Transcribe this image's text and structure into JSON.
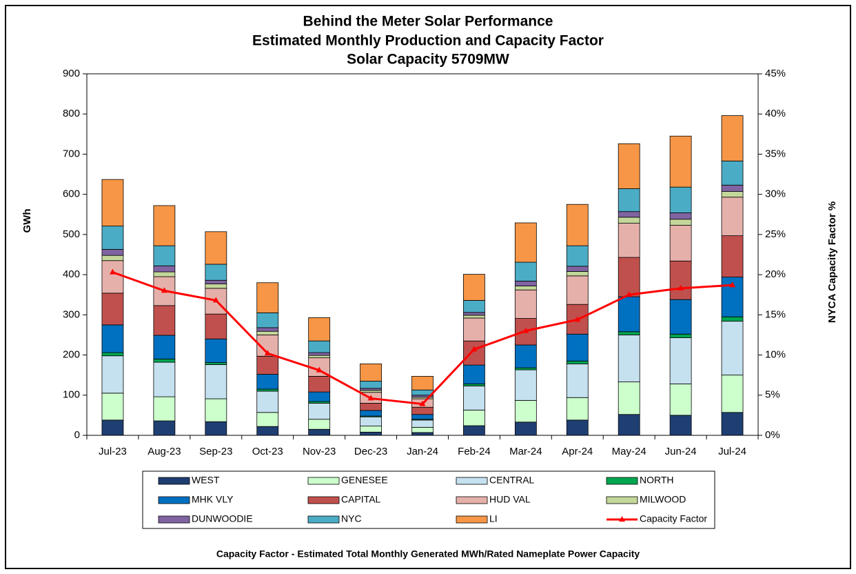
{
  "chart_data": {
    "type": "bar",
    "stacked": true,
    "title": [
      "Behind the Meter Solar Performance",
      "Estimated Monthly Production and Capacity Factor",
      "Solar Capacity 5709MW"
    ],
    "y_label": "GWh",
    "y2_label": "NYCA Capacity Factor %",
    "footnote": "Capacity Factor  - Estimated Total  Monthly Generated MWh/Rated Nameplate Power Capacity",
    "categories": [
      "Jul-23",
      "Aug-23",
      "Sep-23",
      "Oct-23",
      "Nov-23",
      "Dec-23",
      "Jan-24",
      "Feb-24",
      "Mar-24",
      "Apr-24",
      "May-24",
      "Jun-24",
      "Jul-24"
    ],
    "ylim": [
      0,
      900
    ],
    "yticks": [
      0,
      100,
      200,
      300,
      400,
      500,
      600,
      700,
      800,
      900
    ],
    "y2lim": [
      0,
      45
    ],
    "y2ticks": [
      {
        "value": 0,
        "label": "0%"
      },
      {
        "value": 5,
        "label": "5%"
      },
      {
        "value": 10,
        "label": "10%"
      },
      {
        "value": 15,
        "label": "15%"
      },
      {
        "value": 20,
        "label": "20%"
      },
      {
        "value": 25,
        "label": "25%"
      },
      {
        "value": 30,
        "label": "30%"
      },
      {
        "value": 35,
        "label": "35%"
      },
      {
        "value": 40,
        "label": "40%"
      },
      {
        "value": 45,
        "label": "45%"
      }
    ],
    "series": [
      {
        "name": "WEST",
        "color": "#1f3f73",
        "values": [
          38,
          36,
          34,
          22,
          15,
          8,
          7,
          24,
          33,
          38,
          52,
          50,
          57
        ]
      },
      {
        "name": "GENESEE",
        "color": "#ccffcc",
        "values": [
          67,
          60,
          57,
          35,
          25,
          15,
          13,
          39,
          54,
          56,
          81,
          78,
          93
        ]
      },
      {
        "name": "CENTRAL",
        "color": "#c5e0ee",
        "values": [
          93,
          86,
          85,
          53,
          40,
          23,
          18,
          60,
          76,
          84,
          117,
          115,
          134
        ]
      },
      {
        "name": "NORTH",
        "color": "#00a651",
        "values": [
          8,
          8,
          5,
          5,
          4,
          2,
          2,
          5,
          5,
          7,
          8,
          9,
          11
        ]
      },
      {
        "name": "MHK VLY",
        "color": "#0070c0",
        "values": [
          69,
          59,
          59,
          37,
          24,
          14,
          12,
          47,
          57,
          67,
          87,
          86,
          99
        ]
      },
      {
        "name": "CAPITAL",
        "color": "#c0504d",
        "values": [
          79,
          74,
          62,
          45,
          39,
          18,
          18,
          60,
          66,
          74,
          98,
          96,
          103
        ]
      },
      {
        "name": "HUD VAL",
        "color": "#e6b0aa",
        "values": [
          81,
          72,
          64,
          53,
          46,
          27,
          21,
          57,
          71,
          71,
          85,
          89,
          96
        ]
      },
      {
        "name": "MILWOOD",
        "color": "#c4d79b",
        "values": [
          13,
          12,
          11,
          9,
          6,
          5,
          4,
          7,
          10,
          11,
          15,
          15,
          14
        ]
      },
      {
        "name": "DUNWOODIE",
        "color": "#8064a2",
        "values": [
          15,
          15,
          9,
          9,
          7,
          5,
          5,
          7,
          12,
          13,
          14,
          16,
          16
        ]
      },
      {
        "name": "NYC",
        "color": "#4bacc6",
        "values": [
          58,
          50,
          40,
          37,
          29,
          18,
          13,
          30,
          47,
          51,
          57,
          64,
          60
        ]
      },
      {
        "name": "LI",
        "color": "#f79646",
        "values": [
          116,
          100,
          81,
          75,
          58,
          43,
          34,
          65,
          98,
          103,
          112,
          127,
          113
        ]
      },
      {
        "name": "Capacity Factor",
        "color": "#ff0000",
        "type": "line",
        "axis": "y2",
        "values": [
          20.3,
          18.0,
          16.8,
          10.2,
          8.1,
          4.6,
          3.9,
          10.7,
          13.0,
          14.4,
          17.5,
          18.3,
          18.7
        ]
      }
    ]
  }
}
